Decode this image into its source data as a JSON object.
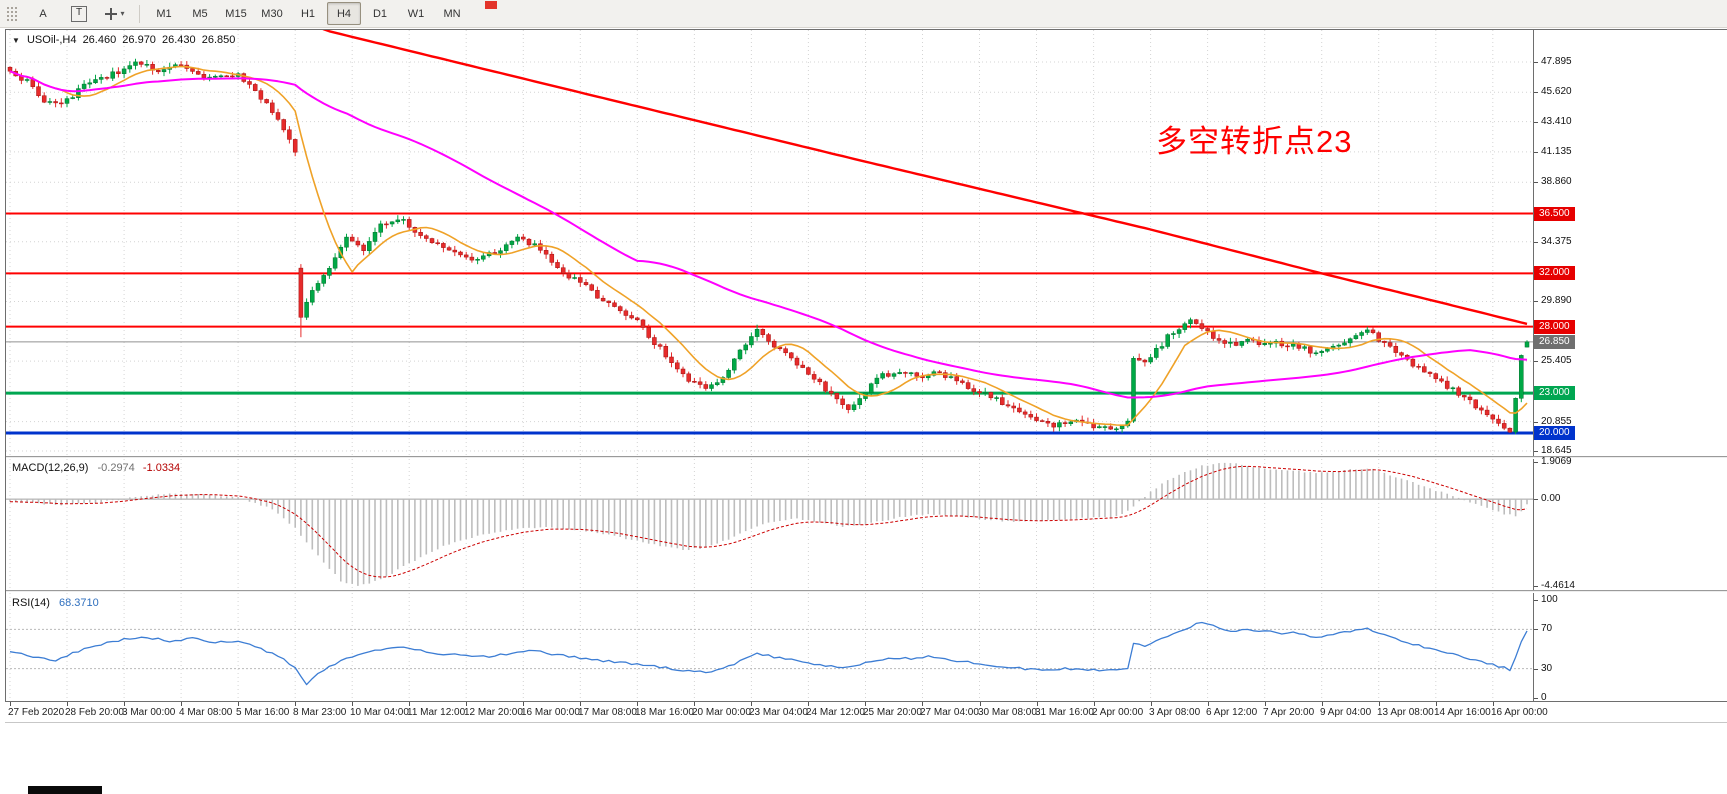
{
  "toolbar": {
    "text_tool_label": "A",
    "label_tool_label": "T",
    "caret_icon": "▾",
    "timeframes": [
      "M1",
      "M5",
      "M15",
      "M30",
      "H1",
      "H4",
      "D1",
      "W1",
      "MN"
    ],
    "active_timeframe": "H4"
  },
  "chart_title": {
    "collapse_icon": "▼",
    "symbol": "USOil-,H4",
    "open": "26.460",
    "high": "26.970",
    "low": "26.430",
    "close": "26.850"
  },
  "annotation": {
    "text": "多空转折点23",
    "color": "#FF0000"
  },
  "indicator_labels": {
    "macd_name": "MACD(12,26,9)",
    "macd_value": "-0.2974",
    "macd_signal": "-1.0334",
    "rsi_name": "RSI(14)",
    "rsi_value": "68.3710"
  },
  "chart_data": {
    "type": "candlestick",
    "symbol": "USOil-",
    "timeframe": "H4",
    "n_bars": 267,
    "label_step_bars": 10,
    "x_labels": [
      "27 Feb 2020",
      "28 Feb 20:00",
      "3 Mar 00:00",
      "4 Mar 08:00",
      "5 Mar 16:00",
      "8 Mar 23:00",
      "10 Mar 04:00",
      "11 Mar 12:00",
      "12 Mar 20:00",
      "16 Mar 00:00",
      "17 Mar 08:00",
      "18 Mar 16:00",
      "20 Mar 00:00",
      "23 Mar 04:00",
      "24 Mar 12:00",
      "25 Mar 20:00",
      "27 Mar 04:00",
      "30 Mar 08:00",
      "31 Mar 16:00",
      "2 Apr 00:00",
      "3 Apr 08:00",
      "6 Apr 12:00",
      "7 Apr 20:00",
      "9 Apr 04:00",
      "13 Apr 08:00",
      "14 Apr 16:00",
      "16 Apr 00:00"
    ],
    "price_axis": {
      "ylim": [
        18.27,
        50.3
      ],
      "regular": [
        {
          "text": "47.895",
          "v": 47.895
        },
        {
          "text": "45.620",
          "v": 45.62
        },
        {
          "text": "43.410",
          "v": 43.41
        },
        {
          "text": "41.135",
          "v": 41.135
        },
        {
          "text": "38.860",
          "v": 38.86
        },
        {
          "text": "34.375",
          "v": 34.375
        },
        {
          "text": "29.890",
          "v": 29.89
        },
        {
          "text": "25.405",
          "v": 25.405
        },
        {
          "text": "20.855",
          "v": 20.855
        },
        {
          "text": "18.645",
          "v": 18.645
        }
      ],
      "highlight": [
        {
          "text": "36.500",
          "v": 36.5,
          "bg": "#E60000"
        },
        {
          "text": "32.000",
          "v": 32.0,
          "bg": "#E60000"
        },
        {
          "text": "28.000",
          "v": 28.0,
          "bg": "#E60000"
        },
        {
          "text": "26.850",
          "v": 26.85,
          "bg": "#6F6F6F"
        },
        {
          "text": "23.000",
          "v": 23.0,
          "bg": "#00A651"
        },
        {
          "text": "20.000",
          "v": 20.0,
          "bg": "#0033CC"
        }
      ]
    },
    "hlines": [
      {
        "v": 36.5,
        "color": "#FF0000",
        "w": 2
      },
      {
        "v": 32.0,
        "color": "#FF0000",
        "w": 2
      },
      {
        "v": 28.0,
        "color": "#FF0000",
        "w": 2
      },
      {
        "v": 23.0,
        "color": "#00A651",
        "w": 3
      },
      {
        "v": 20.0,
        "color": "#0033CC",
        "w": 3
      },
      {
        "v": 26.85,
        "color": "#909090",
        "w": 1
      }
    ],
    "close_anchors": [
      [
        0,
        47.2
      ],
      [
        3,
        46.4
      ],
      [
        6,
        44.9
      ],
      [
        9,
        44.6
      ],
      [
        13,
        46.2
      ],
      [
        18,
        47.0
      ],
      [
        22,
        47.8
      ],
      [
        26,
        47.3
      ],
      [
        30,
        47.8
      ],
      [
        33,
        47.0
      ],
      [
        36,
        46.7
      ],
      [
        40,
        46.9
      ],
      [
        43,
        45.8
      ],
      [
        46,
        44.2
      ],
      [
        48,
        42.6
      ],
      [
        50,
        41.3
      ],
      [
        51,
        28.6
      ],
      [
        53,
        30.8
      ],
      [
        56,
        32.3
      ],
      [
        59,
        34.6
      ],
      [
        62,
        33.8
      ],
      [
        65,
        35.6
      ],
      [
        68,
        36.2
      ],
      [
        71,
        35.2
      ],
      [
        74,
        34.4
      ],
      [
        78,
        33.5
      ],
      [
        82,
        33.0
      ],
      [
        86,
        33.8
      ],
      [
        89,
        34.6
      ],
      [
        92,
        34.2
      ],
      [
        95,
        33.0
      ],
      [
        98,
        31.8
      ],
      [
        101,
        31.0
      ],
      [
        104,
        30.0
      ],
      [
        107,
        29.3
      ],
      [
        110,
        28.4
      ],
      [
        113,
        26.8
      ],
      [
        116,
        25.4
      ],
      [
        119,
        23.9
      ],
      [
        122,
        23.3
      ],
      [
        124,
        23.6
      ],
      [
        126,
        24.8
      ],
      [
        128,
        26.2
      ],
      [
        130,
        27.3
      ],
      [
        131,
        27.8
      ],
      [
        133,
        26.9
      ],
      [
        135,
        26.2
      ],
      [
        137,
        25.6
      ],
      [
        139,
        24.9
      ],
      [
        141,
        24.2
      ],
      [
        143,
        23.2
      ],
      [
        145,
        22.4
      ],
      [
        147,
        21.9
      ],
      [
        149,
        22.6
      ],
      [
        151,
        23.6
      ],
      [
        153,
        24.3
      ],
      [
        156,
        24.7
      ],
      [
        159,
        24.2
      ],
      [
        162,
        24.6
      ],
      [
        165,
        24.1
      ],
      [
        168,
        23.5
      ],
      [
        171,
        22.9
      ],
      [
        174,
        22.3
      ],
      [
        177,
        21.5
      ],
      [
        180,
        20.8
      ],
      [
        183,
        20.5
      ],
      [
        186,
        20.9
      ],
      [
        189,
        20.6
      ],
      [
        192,
        20.3
      ],
      [
        195,
        20.6
      ],
      [
        196,
        20.9
      ],
      [
        197,
        25.8
      ],
      [
        199,
        25.2
      ],
      [
        201,
        26.2
      ],
      [
        203,
        27.2
      ],
      [
        205,
        27.9
      ],
      [
        207,
        28.4
      ],
      [
        209,
        27.9
      ],
      [
        211,
        27.2
      ],
      [
        213,
        26.8
      ],
      [
        215,
        26.6
      ],
      [
        217,
        27.0
      ],
      [
        219,
        26.7
      ],
      [
        221,
        26.9
      ],
      [
        223,
        26.6
      ],
      [
        225,
        26.8
      ],
      [
        227,
        26.3
      ],
      [
        229,
        25.9
      ],
      [
        231,
        26.3
      ],
      [
        233,
        26.7
      ],
      [
        235,
        27.1
      ],
      [
        237,
        27.6
      ],
      [
        238,
        27.9
      ],
      [
        240,
        27.0
      ],
      [
        242,
        26.4
      ],
      [
        244,
        25.8
      ],
      [
        246,
        25.2
      ],
      [
        248,
        24.6
      ],
      [
        250,
        24.0
      ],
      [
        252,
        23.5
      ],
      [
        254,
        22.9
      ],
      [
        256,
        22.3
      ],
      [
        258,
        21.6
      ],
      [
        260,
        21.0
      ],
      [
        262,
        20.4
      ],
      [
        263,
        19.95
      ],
      [
        264,
        22.6
      ],
      [
        265,
        25.9
      ],
      [
        266,
        26.85
      ]
    ],
    "special_bars": {
      "51": {
        "o": 32.4,
        "h": 32.7,
        "l": 27.2
      },
      "266": {
        "o": 26.46,
        "h": 26.97,
        "l": 26.43,
        "c": 26.85
      }
    },
    "noise_seed": 20200416,
    "noise_amp": 0.2,
    "wick_amp": 0.32,
    "colors": {
      "up": "#00A846",
      "up_dark": "#00702A",
      "down": "#E62B2B",
      "down_dark": "#A31111",
      "ma_fast": "#EFA228",
      "ma_slow": "#FF00FF",
      "ma_trend": "#FF0000",
      "grid": "#D4D4D4"
    },
    "ma_fast_period": 10,
    "ma_slow_period": 60,
    "trend_ma_anchors": [
      [
        40,
        52.8
      ],
      [
        56,
        50.2
      ],
      [
        100,
        45.6
      ],
      [
        150,
        40.4
      ],
      [
        200,
        35.3
      ],
      [
        230,
        32.0
      ],
      [
        250,
        29.9
      ],
      [
        266,
        28.2
      ]
    ],
    "macd": {
      "max": 1.9069,
      "min": -4.4614,
      "signal_period": 9,
      "hist_color": "#BDBDBD",
      "signal_color": "#CC0000",
      "anchors": [
        [
          0,
          -0.1
        ],
        [
          8,
          -0.3
        ],
        [
          16,
          -0.15
        ],
        [
          24,
          0.2
        ],
        [
          32,
          0.3
        ],
        [
          40,
          0.1
        ],
        [
          46,
          -0.5
        ],
        [
          50,
          -1.5
        ],
        [
          54,
          -2.9
        ],
        [
          58,
          -4.2
        ],
        [
          61,
          -4.46
        ],
        [
          65,
          -4.15
        ],
        [
          70,
          -3.3
        ],
        [
          76,
          -2.4
        ],
        [
          82,
          -1.9
        ],
        [
          88,
          -1.55
        ],
        [
          94,
          -1.45
        ],
        [
          100,
          -1.6
        ],
        [
          106,
          -1.9
        ],
        [
          112,
          -2.3
        ],
        [
          118,
          -2.6
        ],
        [
          122,
          -2.5
        ],
        [
          126,
          -2.05
        ],
        [
          130,
          -1.5
        ],
        [
          134,
          -1.15
        ],
        [
          138,
          -1.0
        ],
        [
          142,
          -1.2
        ],
        [
          146,
          -1.4
        ],
        [
          150,
          -1.3
        ],
        [
          154,
          -1.05
        ],
        [
          158,
          -0.85
        ],
        [
          162,
          -0.78
        ],
        [
          166,
          -0.88
        ],
        [
          170,
          -1.0
        ],
        [
          174,
          -1.12
        ],
        [
          178,
          -1.18
        ],
        [
          182,
          -1.1
        ],
        [
          186,
          -1.02
        ],
        [
          190,
          -0.96
        ],
        [
          194,
          -0.9
        ],
        [
          196,
          -0.6
        ],
        [
          198,
          -0.1
        ],
        [
          200,
          0.4
        ],
        [
          203,
          0.95
        ],
        [
          206,
          1.4
        ],
        [
          209,
          1.7
        ],
        [
          212,
          1.85
        ],
        [
          215,
          1.8
        ],
        [
          218,
          1.65
        ],
        [
          221,
          1.55
        ],
        [
          224,
          1.5
        ],
        [
          227,
          1.4
        ],
        [
          230,
          1.35
        ],
        [
          233,
          1.42
        ],
        [
          236,
          1.55
        ],
        [
          238,
          1.6
        ],
        [
          241,
          1.35
        ],
        [
          244,
          1.05
        ],
        [
          247,
          0.75
        ],
        [
          250,
          0.45
        ],
        [
          253,
          0.15
        ],
        [
          256,
          -0.15
        ],
        [
          259,
          -0.45
        ],
        [
          262,
          -0.75
        ],
        [
          264,
          -0.85
        ],
        [
          265,
          -0.6
        ],
        [
          266,
          -0.2974
        ]
      ],
      "scale_labels": [
        {
          "text": "1.9069",
          "v": 1.9069
        },
        {
          "text": "0.00",
          "v": 0
        },
        {
          "text": "-4.4614",
          "v": -4.4614
        }
      ]
    },
    "rsi": {
      "range": [
        0,
        100
      ],
      "levels": [
        70,
        30
      ],
      "color": "#3C7DD4",
      "anchors": [
        [
          0,
          48
        ],
        [
          4,
          42
        ],
        [
          8,
          38
        ],
        [
          12,
          48
        ],
        [
          16,
          55
        ],
        [
          20,
          60
        ],
        [
          24,
          62
        ],
        [
          28,
          58
        ],
        [
          32,
          61
        ],
        [
          36,
          57
        ],
        [
          40,
          58
        ],
        [
          44,
          50
        ],
        [
          48,
          40
        ],
        [
          50,
          30
        ],
        [
          52,
          13
        ],
        [
          54,
          25
        ],
        [
          57,
          35
        ],
        [
          60,
          42
        ],
        [
          64,
          48
        ],
        [
          68,
          52
        ],
        [
          72,
          48
        ],
        [
          76,
          45
        ],
        [
          80,
          43
        ],
        [
          84,
          42
        ],
        [
          88,
          46
        ],
        [
          92,
          48
        ],
        [
          96,
          44
        ],
        [
          100,
          41
        ],
        [
          104,
          38
        ],
        [
          108,
          36
        ],
        [
          112,
          33
        ],
        [
          116,
          30
        ],
        [
          120,
          27
        ],
        [
          123,
          26
        ],
        [
          126,
          32
        ],
        [
          129,
          40
        ],
        [
          131,
          45
        ],
        [
          134,
          42
        ],
        [
          137,
          39
        ],
        [
          140,
          36
        ],
        [
          143,
          33
        ],
        [
          146,
          30
        ],
        [
          149,
          34
        ],
        [
          152,
          38
        ],
        [
          155,
          41
        ],
        [
          158,
          40
        ],
        [
          161,
          42
        ],
        [
          164,
          40
        ],
        [
          167,
          37
        ],
        [
          170,
          35
        ],
        [
          173,
          33
        ],
        [
          176,
          31
        ],
        [
          179,
          29
        ],
        [
          182,
          28
        ],
        [
          185,
          30
        ],
        [
          188,
          29
        ],
        [
          191,
          28
        ],
        [
          194,
          29
        ],
        [
          196,
          31
        ],
        [
          197,
          55
        ],
        [
          199,
          53
        ],
        [
          201,
          58
        ],
        [
          203,
          63
        ],
        [
          205,
          68
        ],
        [
          207,
          73
        ],
        [
          209,
          78
        ],
        [
          211,
          74
        ],
        [
          213,
          70
        ],
        [
          215,
          68
        ],
        [
          217,
          70
        ],
        [
          219,
          67
        ],
        [
          221,
          69
        ],
        [
          223,
          66
        ],
        [
          225,
          68
        ],
        [
          227,
          64
        ],
        [
          229,
          62
        ],
        [
          231,
          64
        ],
        [
          233,
          66
        ],
        [
          235,
          68
        ],
        [
          237,
          70
        ],
        [
          238,
          71
        ],
        [
          240,
          66
        ],
        [
          242,
          62
        ],
        [
          244,
          58
        ],
        [
          246,
          55
        ],
        [
          248,
          52
        ],
        [
          250,
          49
        ],
        [
          252,
          46
        ],
        [
          254,
          43
        ],
        [
          256,
          40
        ],
        [
          258,
          37
        ],
        [
          260,
          34
        ],
        [
          262,
          31
        ],
        [
          263,
          29
        ],
        [
          264,
          42
        ],
        [
          265,
          58
        ],
        [
          266,
          68.37
        ]
      ],
      "scale_labels": [
        {
          "text": "100",
          "v": 100
        },
        {
          "text": "70",
          "v": 70
        },
        {
          "text": "30",
          "v": 30
        },
        {
          "text": "0",
          "v": 0
        }
      ]
    }
  }
}
